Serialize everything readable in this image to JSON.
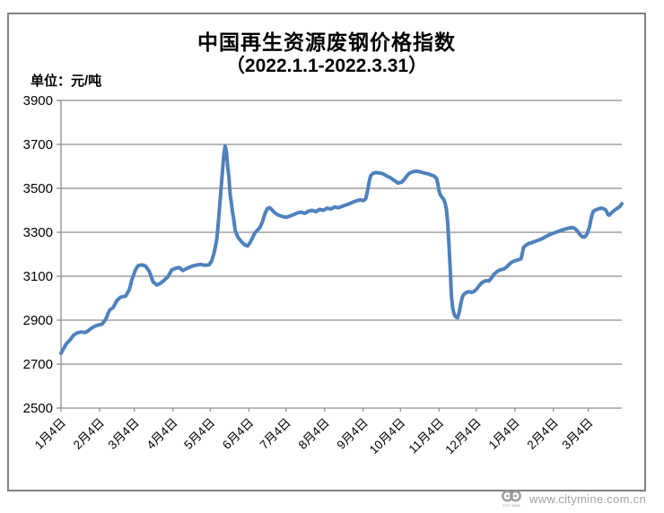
{
  "chart_data": {
    "type": "line",
    "title": "中国再生资源废钢价格指数",
    "subtitle": "（2022.1.1-2022.3.31）",
    "unit_label": "单位：元/吨",
    "ylim": [
      2500,
      3900
    ],
    "y_ticks": [
      2500,
      2700,
      2900,
      3100,
      3300,
      3500,
      3700,
      3900
    ],
    "x_domain": [
      0,
      451
    ],
    "x_ticks": [
      {
        "day": 0,
        "label": "1月4日"
      },
      {
        "day": 31,
        "label": "2月4日"
      },
      {
        "day": 59,
        "label": "3月4日"
      },
      {
        "day": 90,
        "label": "4月4日"
      },
      {
        "day": 120,
        "label": "5月4日"
      },
      {
        "day": 151,
        "label": "6月4日"
      },
      {
        "day": 181,
        "label": "7月4日"
      },
      {
        "day": 212,
        "label": "8月4日"
      },
      {
        "day": 243,
        "label": "9月4日"
      },
      {
        "day": 273,
        "label": "10月4日"
      },
      {
        "day": 304,
        "label": "11月4日"
      },
      {
        "day": 334,
        "label": "12月4日"
      },
      {
        "day": 365,
        "label": "1月4日"
      },
      {
        "day": 396,
        "label": "2月4日"
      },
      {
        "day": 424,
        "label": "3月4日"
      }
    ],
    "grid_on": true,
    "legend": "none",
    "line_color": "#4F81BD",
    "grid_color": "#8C8C8C",
    "series": [
      {
        "points": [
          [
            0,
            2750
          ],
          [
            2,
            2770
          ],
          [
            4,
            2790
          ],
          [
            6,
            2803
          ],
          [
            8,
            2815
          ],
          [
            10,
            2832
          ],
          [
            13,
            2842
          ],
          [
            16,
            2846
          ],
          [
            19,
            2844
          ],
          [
            21,
            2848
          ],
          [
            24,
            2862
          ],
          [
            27,
            2872
          ],
          [
            30,
            2878
          ],
          [
            33,
            2882
          ],
          [
            36,
            2905
          ],
          [
            39,
            2945
          ],
          [
            42,
            2958
          ],
          [
            45,
            2990
          ],
          [
            48,
            3005
          ],
          [
            52,
            3010
          ],
          [
            55,
            3040
          ],
          [
            57,
            3085
          ],
          [
            60,
            3130
          ],
          [
            62,
            3148
          ],
          [
            65,
            3152
          ],
          [
            68,
            3146
          ],
          [
            71,
            3122
          ],
          [
            74,
            3075
          ],
          [
            77,
            3060
          ],
          [
            80,
            3068
          ],
          [
            83,
            3082
          ],
          [
            86,
            3098
          ],
          [
            89,
            3128
          ],
          [
            92,
            3136
          ],
          [
            95,
            3140
          ],
          [
            98,
            3126
          ],
          [
            101,
            3135
          ],
          [
            105,
            3145
          ],
          [
            108,
            3150
          ],
          [
            112,
            3154
          ],
          [
            116,
            3150
          ],
          [
            119,
            3152
          ],
          [
            121,
            3168
          ],
          [
            123,
            3205
          ],
          [
            125,
            3258
          ],
          [
            126,
            3310
          ],
          [
            127,
            3378
          ],
          [
            128,
            3448
          ],
          [
            129,
            3520
          ],
          [
            130,
            3592
          ],
          [
            131,
            3655
          ],
          [
            132,
            3692
          ],
          [
            133,
            3668
          ],
          [
            134,
            3600
          ],
          [
            135,
            3552
          ],
          [
            136,
            3470
          ],
          [
            137,
            3432
          ],
          [
            138,
            3390
          ],
          [
            139,
            3355
          ],
          [
            140,
            3310
          ],
          [
            142,
            3280
          ],
          [
            144,
            3265
          ],
          [
            146,
            3252
          ],
          [
            148,
            3242
          ],
          [
            150,
            3238
          ],
          [
            152,
            3252
          ],
          [
            154,
            3275
          ],
          [
            156,
            3298
          ],
          [
            158,
            3310
          ],
          [
            160,
            3322
          ],
          [
            162,
            3348
          ],
          [
            164,
            3385
          ],
          [
            166,
            3408
          ],
          [
            168,
            3412
          ],
          [
            170,
            3400
          ],
          [
            172,
            3388
          ],
          [
            175,
            3378
          ],
          [
            178,
            3372
          ],
          [
            181,
            3368
          ],
          [
            184,
            3374
          ],
          [
            187,
            3380
          ],
          [
            190,
            3388
          ],
          [
            193,
            3392
          ],
          [
            196,
            3386
          ],
          [
            199,
            3396
          ],
          [
            202,
            3400
          ],
          [
            205,
            3394
          ],
          [
            208,
            3404
          ],
          [
            211,
            3400
          ],
          [
            214,
            3410
          ],
          [
            217,
            3406
          ],
          [
            220,
            3415
          ],
          [
            223,
            3412
          ],
          [
            226,
            3418
          ],
          [
            229,
            3424
          ],
          [
            232,
            3430
          ],
          [
            235,
            3438
          ],
          [
            238,
            3444
          ],
          [
            241,
            3448
          ],
          [
            243,
            3444
          ],
          [
            245,
            3452
          ],
          [
            246,
            3475
          ],
          [
            247,
            3505
          ],
          [
            248,
            3535
          ],
          [
            249,
            3558
          ],
          [
            251,
            3568
          ],
          [
            253,
            3572
          ],
          [
            256,
            3570
          ],
          [
            259,
            3566
          ],
          [
            262,
            3556
          ],
          [
            265,
            3548
          ],
          [
            268,
            3536
          ],
          [
            271,
            3524
          ],
          [
            274,
            3528
          ],
          [
            276,
            3540
          ],
          [
            278,
            3556
          ],
          [
            280,
            3568
          ],
          [
            283,
            3576
          ],
          [
            286,
            3578
          ],
          [
            289,
            3575
          ],
          [
            292,
            3570
          ],
          [
            295,
            3566
          ],
          [
            298,
            3560
          ],
          [
            300,
            3556
          ],
          [
            302,
            3545
          ],
          [
            303,
            3522
          ],
          [
            304,
            3488
          ],
          [
            305,
            3470
          ],
          [
            306,
            3462
          ],
          [
            307,
            3455
          ],
          [
            308,
            3448
          ],
          [
            309,
            3430
          ],
          [
            310,
            3400
          ],
          [
            311,
            3340
          ],
          [
            312,
            3240
          ],
          [
            313,
            3130
          ],
          [
            314,
            3010
          ],
          [
            315,
            2955
          ],
          [
            316,
            2930
          ],
          [
            317,
            2918
          ],
          [
            318,
            2913
          ],
          [
            319,
            2912
          ],
          [
            320,
            2932
          ],
          [
            321,
            2958
          ],
          [
            322,
            2988
          ],
          [
            323,
            3008
          ],
          [
            324,
            3018
          ],
          [
            326,
            3026
          ],
          [
            328,
            3030
          ],
          [
            330,
            3026
          ],
          [
            332,
            3030
          ],
          [
            334,
            3040
          ],
          [
            336,
            3055
          ],
          [
            338,
            3068
          ],
          [
            340,
            3076
          ],
          [
            342,
            3080
          ],
          [
            344,
            3078
          ],
          [
            346,
            3090
          ],
          [
            348,
            3108
          ],
          [
            350,
            3118
          ],
          [
            352,
            3126
          ],
          [
            354,
            3130
          ],
          [
            356,
            3133
          ],
          [
            358,
            3140
          ],
          [
            360,
            3152
          ],
          [
            362,
            3162
          ],
          [
            364,
            3168
          ],
          [
            366,
            3172
          ],
          [
            368,
            3175
          ],
          [
            370,
            3180
          ],
          [
            371,
            3205
          ],
          [
            372,
            3232
          ],
          [
            374,
            3242
          ],
          [
            376,
            3248
          ],
          [
            379,
            3254
          ],
          [
            382,
            3260
          ],
          [
            385,
            3266
          ],
          [
            388,
            3274
          ],
          [
            391,
            3284
          ],
          [
            394,
            3292
          ],
          [
            396,
            3296
          ],
          [
            399,
            3302
          ],
          [
            402,
            3308
          ],
          [
            405,
            3314
          ],
          [
            408,
            3318
          ],
          [
            411,
            3322
          ],
          [
            413,
            3318
          ],
          [
            415,
            3308
          ],
          [
            417,
            3292
          ],
          [
            419,
            3280
          ],
          [
            421,
            3278
          ],
          [
            423,
            3292
          ],
          [
            425,
            3325
          ],
          [
            426,
            3355
          ],
          [
            427,
            3378
          ],
          [
            428,
            3395
          ],
          [
            430,
            3402
          ],
          [
            432,
            3406
          ],
          [
            434,
            3410
          ],
          [
            436,
            3408
          ],
          [
            438,
            3402
          ],
          [
            440,
            3380
          ],
          [
            441,
            3378
          ],
          [
            443,
            3390
          ],
          [
            445,
            3400
          ],
          [
            447,
            3408
          ],
          [
            449,
            3415
          ],
          [
            450,
            3422
          ],
          [
            451,
            3430
          ]
        ]
      }
    ]
  },
  "watermark": {
    "url": "www.citymine.com.cn",
    "logo_caption": "CITY MINE"
  }
}
